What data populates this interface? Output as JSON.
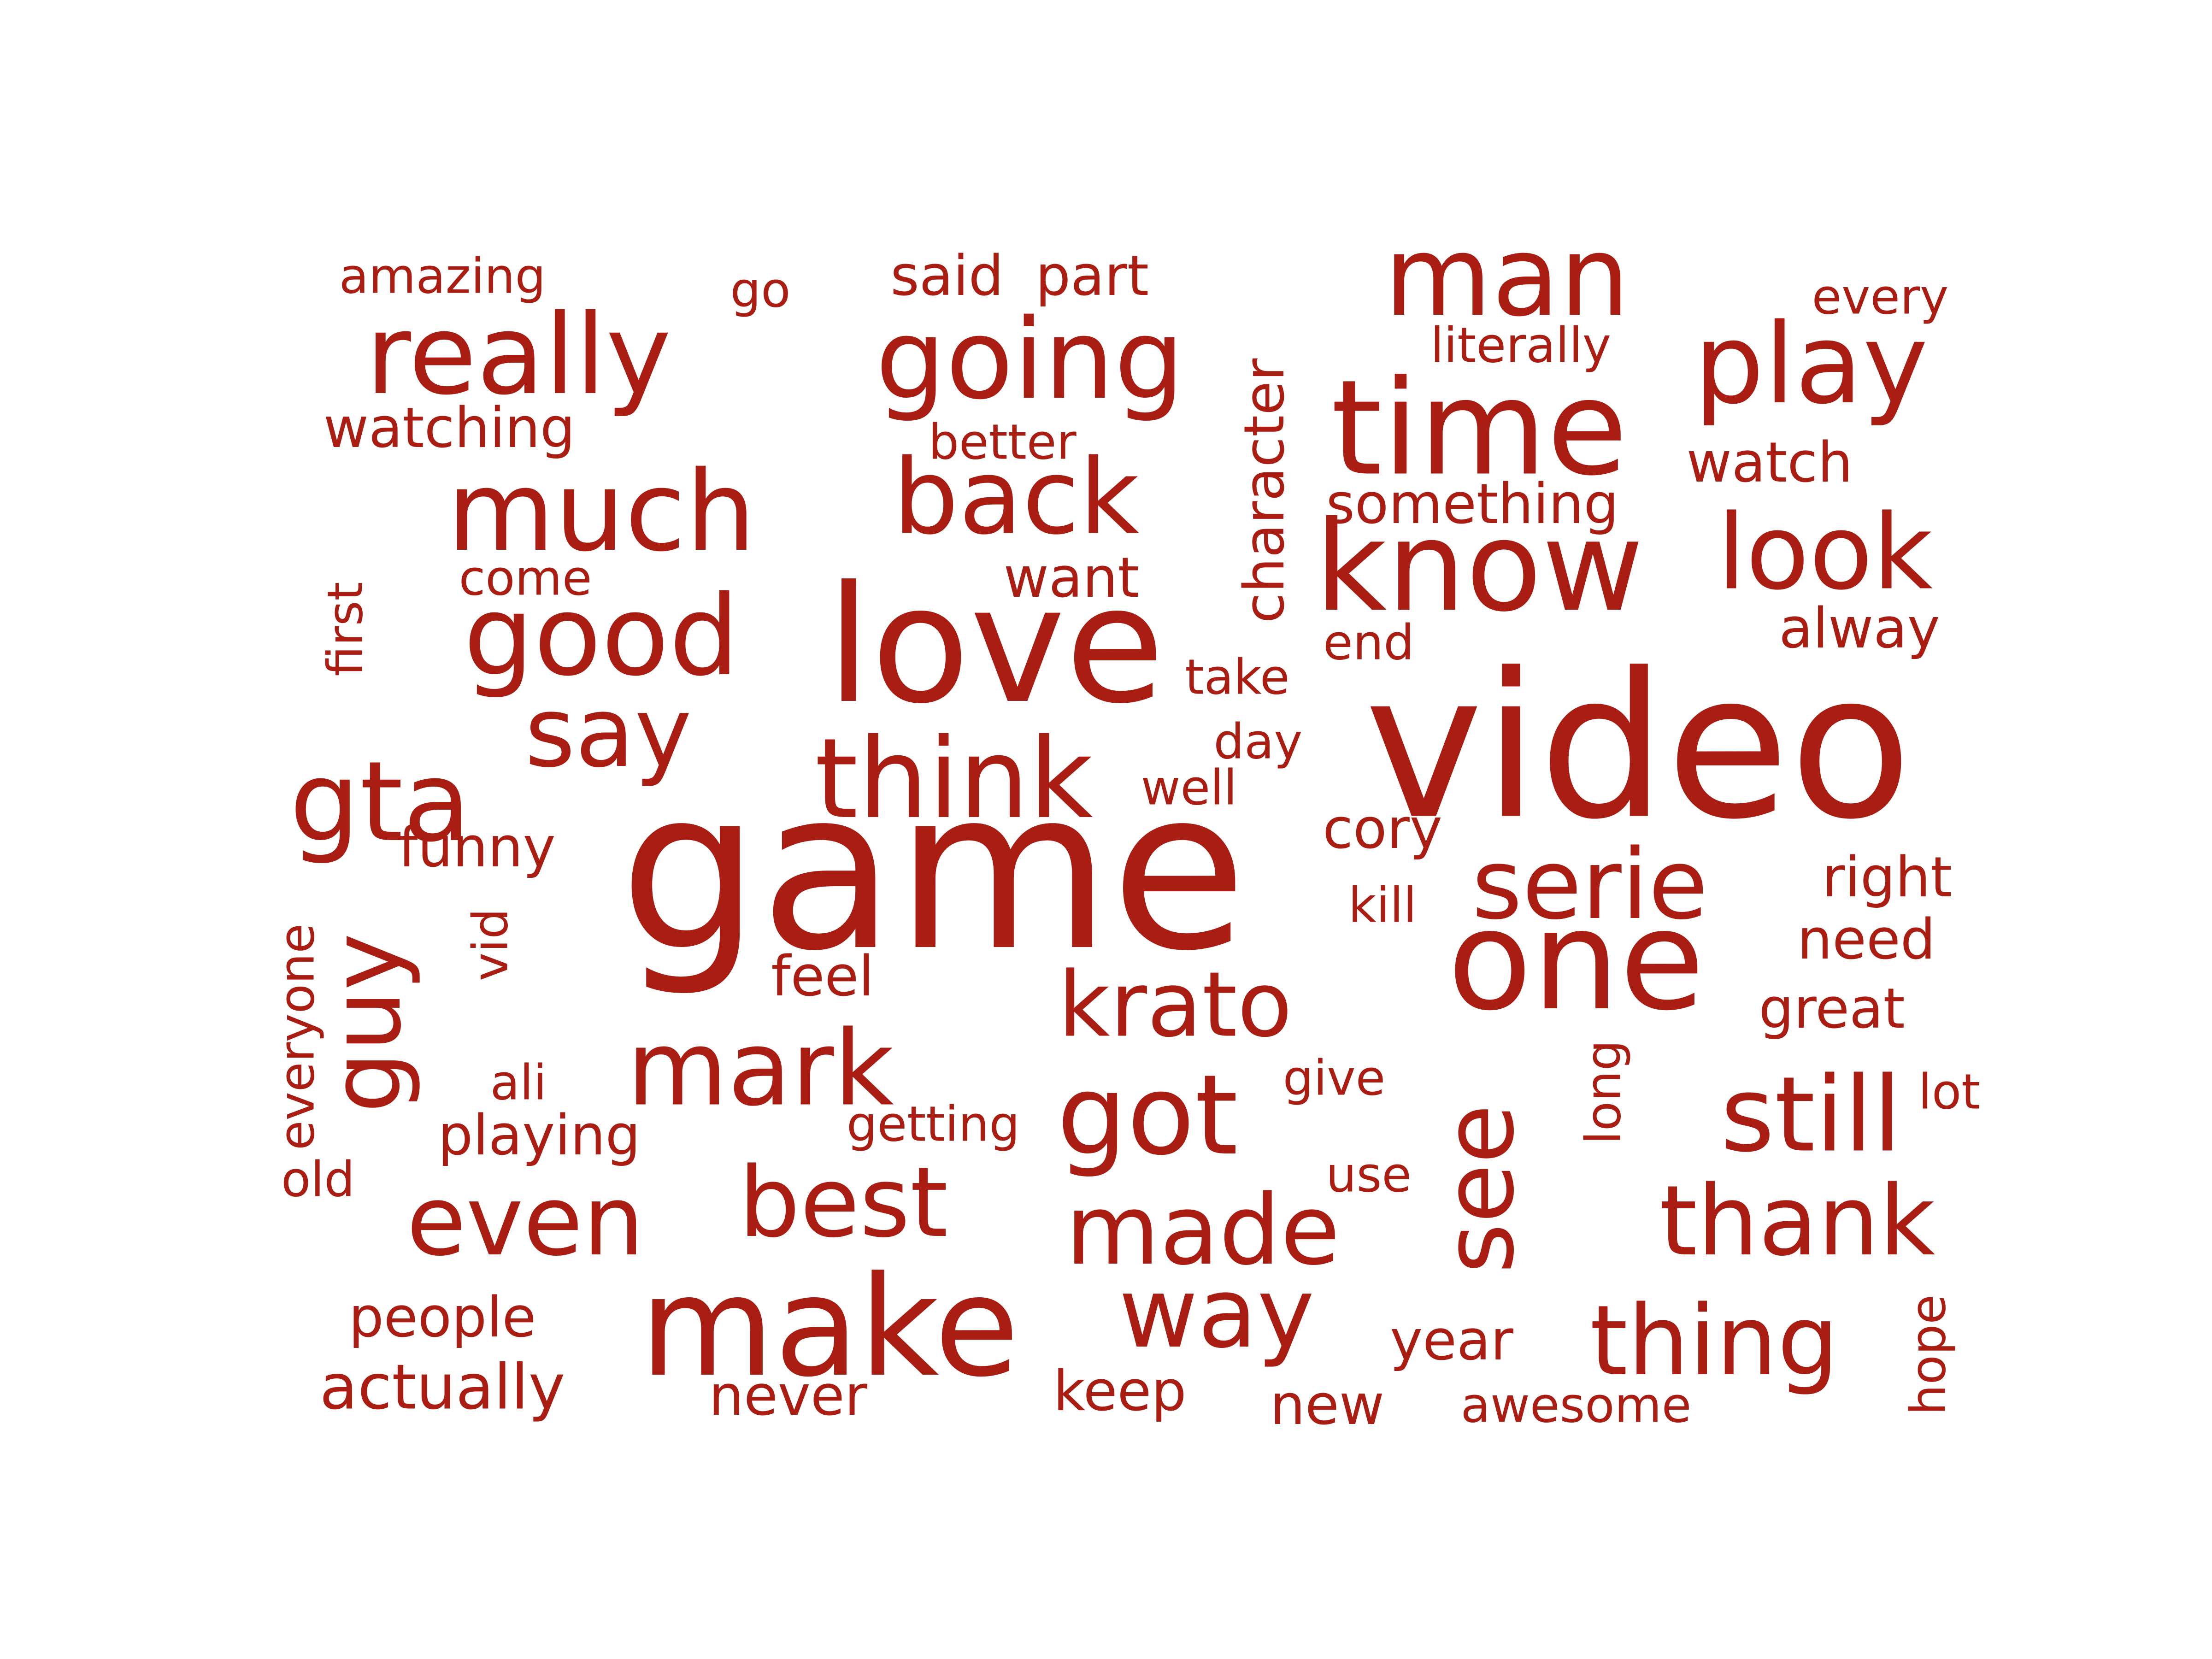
{
  "color": "#A91D12",
  "words": [
    {
      "text": "game"
    },
    {
      "text": "video"
    },
    {
      "text": "love"
    },
    {
      "text": "make"
    },
    {
      "text": "one"
    },
    {
      "text": "time"
    },
    {
      "text": "know"
    },
    {
      "text": "going"
    },
    {
      "text": "really"
    },
    {
      "text": "man"
    },
    {
      "text": "play"
    },
    {
      "text": "much"
    },
    {
      "text": "think"
    },
    {
      "text": "good"
    },
    {
      "text": "back"
    },
    {
      "text": "look"
    },
    {
      "text": "gta"
    },
    {
      "text": "say"
    },
    {
      "text": "serie"
    },
    {
      "text": "mark"
    },
    {
      "text": "krato"
    },
    {
      "text": "got"
    },
    {
      "text": "still"
    },
    {
      "text": "even"
    },
    {
      "text": "best"
    },
    {
      "text": "made"
    },
    {
      "text": "thank"
    },
    {
      "text": "way"
    },
    {
      "text": "thing"
    },
    {
      "text": "see"
    },
    {
      "text": "guy"
    },
    {
      "text": "amazing"
    },
    {
      "text": "go"
    },
    {
      "text": "said"
    },
    {
      "text": "part"
    },
    {
      "text": "every"
    },
    {
      "text": "literally"
    },
    {
      "text": "watching"
    },
    {
      "text": "better"
    },
    {
      "text": "character"
    },
    {
      "text": "watch"
    },
    {
      "text": "something"
    },
    {
      "text": "come"
    },
    {
      "text": "want"
    },
    {
      "text": "first"
    },
    {
      "text": "alway"
    },
    {
      "text": "end"
    },
    {
      "text": "take"
    },
    {
      "text": "day"
    },
    {
      "text": "well"
    },
    {
      "text": "cory"
    },
    {
      "text": "funny"
    },
    {
      "text": "right"
    },
    {
      "text": "kill"
    },
    {
      "text": "need"
    },
    {
      "text": "vid"
    },
    {
      "text": "everyone"
    },
    {
      "text": "feel"
    },
    {
      "text": "great"
    },
    {
      "text": "long"
    },
    {
      "text": "ali"
    },
    {
      "text": "give"
    },
    {
      "text": "lot"
    },
    {
      "text": "playing"
    },
    {
      "text": "getting"
    },
    {
      "text": "old"
    },
    {
      "text": "use"
    },
    {
      "text": "people"
    },
    {
      "text": "hope"
    },
    {
      "text": "year"
    },
    {
      "text": "actually"
    },
    {
      "text": "never"
    },
    {
      "text": "keep"
    },
    {
      "text": "new"
    },
    {
      "text": "awesome"
    }
  ]
}
